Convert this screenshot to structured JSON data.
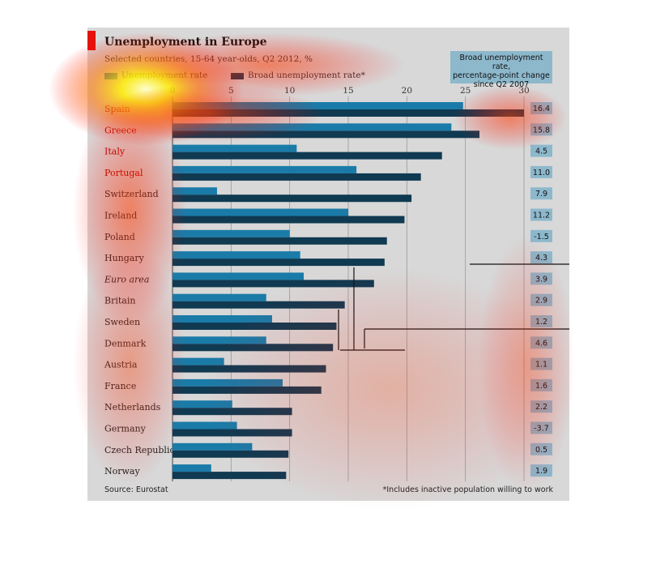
{
  "chart_data": {
    "type": "bar",
    "orientation": "horizontal",
    "title": "Unemployment in Europe",
    "subtitle": "Selected countries, 15-64 year-olds, Q2 2012, %",
    "legend_position": "top",
    "series": [
      {
        "name": "Unemployment rate",
        "color": "#1a7ba8"
      },
      {
        "name": "Broad unemployment rate*",
        "color": "#0f3a52"
      }
    ],
    "xlim": [
      0,
      30
    ],
    "xticks": [
      0,
      5,
      10,
      15,
      20,
      25,
      30
    ],
    "grid": true,
    "change_header": [
      "Broad unemployment rate,",
      "percentage-point change",
      "since Q2 2007"
    ],
    "rows": [
      {
        "label": "Spain",
        "highlight": true,
        "unemployment": 24.8,
        "broad": 30.0,
        "change": "16.4"
      },
      {
        "label": "Greece",
        "highlight": true,
        "unemployment": 23.8,
        "broad": 26.2,
        "change": "15.8"
      },
      {
        "label": "Italy",
        "highlight": true,
        "unemployment": 10.6,
        "broad": 23.0,
        "change": "4.5"
      },
      {
        "label": "Portugal",
        "highlight": true,
        "unemployment": 15.7,
        "broad": 21.2,
        "change": "11.0"
      },
      {
        "label": "Switzerland",
        "highlight": false,
        "unemployment": 3.8,
        "broad": 20.4,
        "change": "7.9"
      },
      {
        "label": "Ireland",
        "highlight": false,
        "unemployment": 15.0,
        "broad": 19.8,
        "change": "11.2"
      },
      {
        "label": "Poland",
        "highlight": false,
        "unemployment": 10.0,
        "broad": 18.3,
        "change": "-1.5"
      },
      {
        "label": "Hungary",
        "highlight": false,
        "unemployment": 10.9,
        "broad": 18.1,
        "change": "4.3"
      },
      {
        "label": "Euro area",
        "italic": true,
        "highlight": false,
        "unemployment": 11.2,
        "broad": 17.2,
        "change": "3.9"
      },
      {
        "label": "Britain",
        "highlight": false,
        "unemployment": 8.0,
        "broad": 14.7,
        "change": "2.9"
      },
      {
        "label": "Sweden",
        "highlight": false,
        "unemployment": 8.5,
        "broad": 14.0,
        "change": "1.2"
      },
      {
        "label": "Denmark",
        "highlight": false,
        "unemployment": 8.0,
        "broad": 13.7,
        "change": "4.6"
      },
      {
        "label": "Austria",
        "highlight": false,
        "unemployment": 4.4,
        "broad": 13.1,
        "change": "1.1"
      },
      {
        "label": "France",
        "highlight": false,
        "unemployment": 9.4,
        "broad": 12.7,
        "change": "1.6"
      },
      {
        "label": "Netherlands",
        "highlight": false,
        "unemployment": 5.1,
        "broad": 10.2,
        "change": "2.2"
      },
      {
        "label": "Germany",
        "highlight": false,
        "unemployment": 5.5,
        "broad": 10.2,
        "change": "-3.7"
      },
      {
        "label": "Czech Republic",
        "highlight": false,
        "unemployment": 6.8,
        "broad": 9.9,
        "change": "0.5"
      },
      {
        "label": "Norway",
        "highlight": false,
        "unemployment": 3.3,
        "broad": 9.7,
        "change": "1.9"
      }
    ],
    "source": "Source: Eurostat",
    "footnote": "*Includes inactive population willing to work"
  }
}
